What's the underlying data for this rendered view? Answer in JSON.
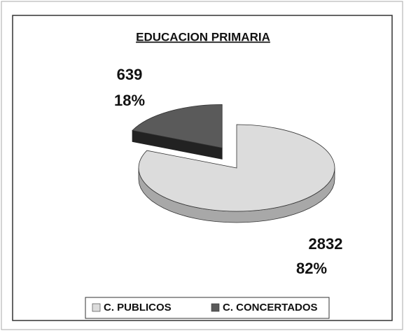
{
  "chart_data": {
    "type": "pie",
    "title": "EDUCACION PRIMARIA",
    "categories": [
      "C. PUBLICOS",
      "C. CONCERTADOS"
    ],
    "values": [
      2832,
      639
    ],
    "percentages": [
      82,
      18
    ],
    "percentage_labels": [
      "82%",
      "18%"
    ],
    "colors": [
      "#dcdcdc",
      "#5a5a5a"
    ],
    "legend": "bottom"
  }
}
